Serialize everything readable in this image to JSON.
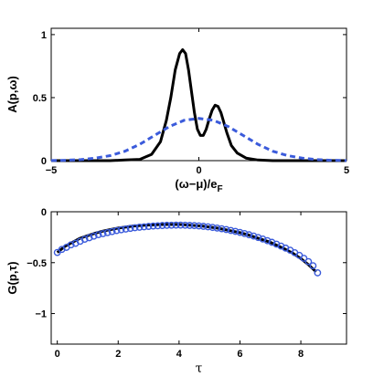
{
  "chart_data": [
    {
      "type": "line",
      "title": "",
      "xlabel": "(ω−μ)/e",
      "xlabel_sub": "F",
      "ylabel": "A(p,ω)",
      "xlim": [
        -5,
        5
      ],
      "ylim": [
        0,
        1.05
      ],
      "xticks": [
        -5,
        0,
        5
      ],
      "yticks": [
        0,
        0.5,
        1
      ],
      "grid": false,
      "series": [
        {
          "style": "solid",
          "color": "#000000",
          "x": [
            -5,
            -4,
            -3,
            -2.5,
            -2,
            -1.6,
            -1.3,
            -1.1,
            -0.95,
            -0.8,
            -0.65,
            -0.55,
            -0.45,
            -0.35,
            -0.25,
            -0.15,
            -0.05,
            0.05,
            0.15,
            0.25,
            0.35,
            0.45,
            0.55,
            0.65,
            0.75,
            0.85,
            0.95,
            1.1,
            1.3,
            1.6,
            2.0,
            2.5,
            3,
            4,
            5
          ],
          "y": [
            0,
            0,
            0,
            0.005,
            0.01,
            0.05,
            0.15,
            0.32,
            0.5,
            0.72,
            0.85,
            0.88,
            0.85,
            0.72,
            0.55,
            0.38,
            0.25,
            0.2,
            0.2,
            0.25,
            0.33,
            0.4,
            0.44,
            0.43,
            0.38,
            0.3,
            0.22,
            0.12,
            0.06,
            0.02,
            0.005,
            0,
            0,
            0,
            0
          ]
        },
        {
          "style": "dashed",
          "color": "#3b5bdb",
          "x": [
            -5,
            -4.5,
            -4,
            -3.5,
            -3,
            -2.5,
            -2,
            -1.5,
            -1,
            -0.5,
            0,
            0.5,
            1,
            1.5,
            2,
            2.5,
            3,
            3.5,
            4,
            4.5,
            5
          ],
          "y": [
            0.001,
            0.003,
            0.008,
            0.02,
            0.04,
            0.075,
            0.13,
            0.2,
            0.27,
            0.32,
            0.335,
            0.32,
            0.27,
            0.2,
            0.13,
            0.075,
            0.04,
            0.02,
            0.008,
            0.003,
            0.001
          ]
        }
      ]
    },
    {
      "type": "line",
      "title": "",
      "xlabel": "τ",
      "ylabel": "G(p,τ)",
      "xlim": [
        -0.2,
        9.5
      ],
      "ylim": [
        -1.3,
        0
      ],
      "xticks": [
        0,
        2,
        4,
        6,
        8
      ],
      "yticks": [
        0,
        -0.5,
        -1
      ],
      "grid": false,
      "series": [
        {
          "style": "solid",
          "color": "#000000",
          "x": [
            0,
            0.25,
            0.5,
            0.75,
            1,
            1.25,
            1.5,
            1.75,
            2,
            2.25,
            2.5,
            2.75,
            3,
            3.25,
            3.5,
            3.75,
            4,
            4.25,
            4.5,
            4.75,
            5,
            5.25,
            5.5,
            5.75,
            6,
            6.25,
            6.5,
            6.75,
            7,
            7.25,
            7.5,
            7.75,
            8,
            8.25,
            8.5
          ],
          "y": [
            -0.4,
            -0.34,
            -0.3,
            -0.26,
            -0.235,
            -0.21,
            -0.19,
            -0.175,
            -0.16,
            -0.15,
            -0.14,
            -0.135,
            -0.13,
            -0.128,
            -0.126,
            -0.125,
            -0.125,
            -0.13,
            -0.135,
            -0.14,
            -0.15,
            -0.16,
            -0.175,
            -0.19,
            -0.205,
            -0.225,
            -0.25,
            -0.275,
            -0.3,
            -0.335,
            -0.37,
            -0.41,
            -0.46,
            -0.52,
            -0.59
          ]
        },
        {
          "style": "markers",
          "marker": "circle",
          "color": "#3b5bdb",
          "x": [
            0,
            0.15,
            0.3,
            0.45,
            0.6,
            0.75,
            0.9,
            1.05,
            1.2,
            1.35,
            1.5,
            1.65,
            1.8,
            1.95,
            2.1,
            2.25,
            2.4,
            2.55,
            2.7,
            2.85,
            3,
            3.15,
            3.3,
            3.45,
            3.6,
            3.75,
            3.9,
            4.05,
            4.2,
            4.35,
            4.5,
            4.65,
            4.8,
            4.95,
            5.1,
            5.25,
            5.4,
            5.55,
            5.7,
            5.85,
            6,
            6.15,
            6.3,
            6.45,
            6.6,
            6.75,
            6.9,
            7.05,
            7.2,
            7.35,
            7.5,
            7.65,
            7.8,
            7.95,
            8.1,
            8.25,
            8.4,
            8.55
          ],
          "y": [
            -0.4,
            -0.37,
            -0.35,
            -0.325,
            -0.31,
            -0.29,
            -0.27,
            -0.255,
            -0.24,
            -0.225,
            -0.215,
            -0.205,
            -0.195,
            -0.185,
            -0.177,
            -0.17,
            -0.163,
            -0.157,
            -0.152,
            -0.148,
            -0.144,
            -0.14,
            -0.138,
            -0.135,
            -0.133,
            -0.132,
            -0.131,
            -0.131,
            -0.132,
            -0.134,
            -0.136,
            -0.139,
            -0.143,
            -0.148,
            -0.154,
            -0.16,
            -0.167,
            -0.175,
            -0.184,
            -0.193,
            -0.203,
            -0.214,
            -0.226,
            -0.239,
            -0.253,
            -0.268,
            -0.284,
            -0.3,
            -0.318,
            -0.337,
            -0.357,
            -0.378,
            -0.402,
            -0.428,
            -0.457,
            -0.49,
            -0.53,
            -0.6
          ]
        }
      ]
    }
  ]
}
